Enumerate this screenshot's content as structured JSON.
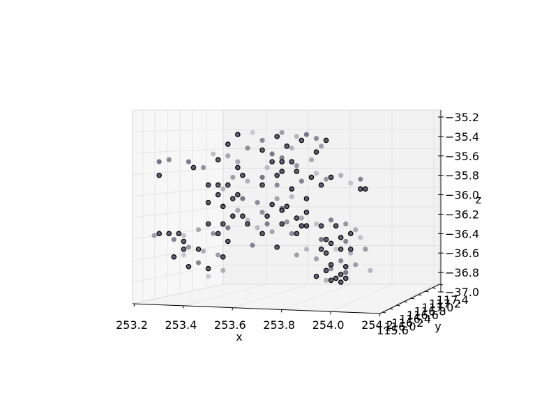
{
  "chart_data": {
    "type": "scatter",
    "projection": "3d",
    "title": "",
    "xlabel": "x",
    "ylabel": "y",
    "zlabel": "z",
    "xlim": [
      253.2,
      254.2
    ],
    "ylim": [
      115.6,
      117.4
    ],
    "zlim": [
      -37.0,
      -35.2
    ],
    "x_ticks": [
      "253.2",
      "253.4",
      "253.6",
      "253.8",
      "254.0",
      "254.2"
    ],
    "y_ticks": [
      "115.6",
      "116.0",
      "116.2",
      "116.4",
      "116.6",
      "116.8",
      "117.0",
      "117.2",
      "117.4"
    ],
    "z_ticks": [
      "-35.2",
      "-35.4",
      "-35.6",
      "-35.8",
      "-36.0",
      "-36.2",
      "-36.4",
      "-36.6",
      "-36.8",
      "-37.0"
    ],
    "grid": true,
    "marker_color": "#4a4660",
    "pane_color": "#f2f2f2",
    "series": [
      {
        "values": [
          {
            "x": 253.68,
            "z": -35.36
          },
          {
            "x": 253.72,
            "z": -35.44
          },
          {
            "x": 253.8,
            "z": -35.36
          },
          {
            "x": 253.86,
            "z": -35.4
          },
          {
            "x": 253.9,
            "z": -35.38
          },
          {
            "x": 253.94,
            "z": -35.42
          },
          {
            "x": 253.96,
            "z": -35.5
          },
          {
            "x": 253.84,
            "z": -35.52
          },
          {
            "x": 253.76,
            "z": -35.58
          },
          {
            "x": 253.66,
            "z": -35.52
          },
          {
            "x": 253.58,
            "z": -35.6
          },
          {
            "x": 253.52,
            "z": -35.58
          },
          {
            "x": 253.42,
            "z": -35.66
          },
          {
            "x": 253.48,
            "z": -35.72
          },
          {
            "x": 253.62,
            "z": -35.66
          },
          {
            "x": 253.74,
            "z": -35.72
          },
          {
            "x": 253.8,
            "z": -35.62
          },
          {
            "x": 253.86,
            "z": -35.7
          },
          {
            "x": 253.92,
            "z": -35.64
          },
          {
            "x": 253.94,
            "z": -35.78
          },
          {
            "x": 253.88,
            "z": -35.86
          },
          {
            "x": 253.98,
            "z": -35.84
          },
          {
            "x": 254.04,
            "z": -35.8
          },
          {
            "x": 254.08,
            "z": -35.88
          },
          {
            "x": 254.12,
            "z": -35.84
          },
          {
            "x": 253.6,
            "z": -35.82
          },
          {
            "x": 253.66,
            "z": -35.86
          },
          {
            "x": 253.72,
            "z": -35.82
          },
          {
            "x": 253.78,
            "z": -35.9
          },
          {
            "x": 253.84,
            "z": -35.94
          },
          {
            "x": 253.56,
            "z": -35.94
          },
          {
            "x": 253.64,
            "z": -36.04
          },
          {
            "x": 253.7,
            "z": -36.08
          },
          {
            "x": 253.78,
            "z": -36.04
          },
          {
            "x": 253.84,
            "z": -36.02
          },
          {
            "x": 253.8,
            "z": -36.14
          },
          {
            "x": 253.72,
            "z": -36.18
          },
          {
            "x": 253.62,
            "z": -36.16
          },
          {
            "x": 253.66,
            "z": -36.26
          },
          {
            "x": 253.74,
            "z": -36.3
          },
          {
            "x": 253.82,
            "z": -36.28
          },
          {
            "x": 253.88,
            "z": -36.24
          },
          {
            "x": 253.94,
            "z": -36.3
          },
          {
            "x": 254.0,
            "z": -36.26
          },
          {
            "x": 254.06,
            "z": -36.3
          },
          {
            "x": 254.1,
            "z": -36.36
          },
          {
            "x": 254.12,
            "z": -36.44
          },
          {
            "x": 254.06,
            "z": -36.48
          },
          {
            "x": 254.14,
            "z": -36.56
          },
          {
            "x": 254.08,
            "z": -36.6
          },
          {
            "x": 254.02,
            "z": -36.56
          },
          {
            "x": 254.04,
            "z": -36.68
          },
          {
            "x": 254.1,
            "z": -36.72
          },
          {
            "x": 254.16,
            "z": -36.78
          },
          {
            "x": 254.06,
            "z": -36.8
          },
          {
            "x": 254.0,
            "z": -36.76
          },
          {
            "x": 253.94,
            "z": -36.66
          },
          {
            "x": 253.9,
            "z": -36.56
          },
          {
            "x": 253.96,
            "z": -36.46
          },
          {
            "x": 253.84,
            "z": -36.4
          },
          {
            "x": 253.76,
            "z": -36.38
          },
          {
            "x": 253.7,
            "z": -36.34
          },
          {
            "x": 253.58,
            "z": -36.34
          },
          {
            "x": 253.52,
            "z": -36.4
          },
          {
            "x": 253.46,
            "z": -36.36
          },
          {
            "x": 253.4,
            "z": -36.42
          },
          {
            "x": 253.36,
            "z": -36.46
          },
          {
            "x": 253.42,
            "z": -36.54
          },
          {
            "x": 253.48,
            "z": -36.58
          },
          {
            "x": 253.4,
            "z": -36.62
          },
          {
            "x": 253.46,
            "z": -36.7
          },
          {
            "x": 253.54,
            "z": -36.62
          },
          {
            "x": 253.56,
            "z": -36.78
          },
          {
            "x": 253.5,
            "z": -36.84
          },
          {
            "x": 253.68,
            "z": -36.52
          },
          {
            "x": 253.86,
            "z": -36.62
          },
          {
            "x": 253.98,
            "z": -36.88
          },
          {
            "x": 253.3,
            "z": -35.66
          },
          {
            "x": 253.34,
            "z": -35.64
          },
          {
            "x": 253.28,
            "z": -36.42
          }
        ]
      },
      {
        "values": [
          {
            "x": 253.62,
            "z": -35.38
          },
          {
            "x": 253.78,
            "z": -35.4
          },
          {
            "x": 253.88,
            "z": -35.44
          },
          {
            "x": 253.98,
            "z": -35.44
          },
          {
            "x": 253.58,
            "z": -35.48
          },
          {
            "x": 253.82,
            "z": -35.5
          },
          {
            "x": 253.94,
            "z": -35.56
          },
          {
            "x": 253.72,
            "z": -35.54
          },
          {
            "x": 253.54,
            "z": -35.64
          },
          {
            "x": 253.76,
            "z": -35.66
          },
          {
            "x": 253.8,
            "z": -35.66
          },
          {
            "x": 253.84,
            "z": -35.66
          },
          {
            "x": 253.44,
            "z": -35.72
          },
          {
            "x": 253.62,
            "z": -35.72
          },
          {
            "x": 253.8,
            "z": -35.76
          },
          {
            "x": 253.86,
            "z": -35.76
          },
          {
            "x": 253.3,
            "z": -35.8
          },
          {
            "x": 253.64,
            "z": -35.8
          },
          {
            "x": 253.78,
            "z": -35.8
          },
          {
            "x": 253.92,
            "z": -35.82
          },
          {
            "x": 254.0,
            "z": -35.82
          },
          {
            "x": 253.5,
            "z": -35.9
          },
          {
            "x": 253.54,
            "z": -35.9
          },
          {
            "x": 253.58,
            "z": -35.9
          },
          {
            "x": 253.72,
            "z": -35.9
          },
          {
            "x": 253.96,
            "z": -35.9
          },
          {
            "x": 253.84,
            "z": -35.94
          },
          {
            "x": 254.12,
            "z": -35.94
          },
          {
            "x": 254.14,
            "z": -35.94
          },
          {
            "x": 253.54,
            "z": -36.0
          },
          {
            "x": 253.62,
            "z": -36.0
          },
          {
            "x": 253.9,
            "z": -36.04
          },
          {
            "x": 253.6,
            "z": -36.04
          },
          {
            "x": 253.5,
            "z": -36.08
          },
          {
            "x": 253.76,
            "z": -36.1
          },
          {
            "x": 253.82,
            "z": -36.12
          },
          {
            "x": 253.56,
            "z": -36.12
          },
          {
            "x": 253.8,
            "z": -36.16
          },
          {
            "x": 253.9,
            "z": -36.18
          },
          {
            "x": 253.6,
            "z": -36.22
          },
          {
            "x": 253.64,
            "z": -36.22
          },
          {
            "x": 253.74,
            "z": -36.22
          },
          {
            "x": 253.86,
            "z": -36.24
          },
          {
            "x": 253.5,
            "z": -36.3
          },
          {
            "x": 253.56,
            "z": -36.3
          },
          {
            "x": 253.66,
            "z": -36.3
          },
          {
            "x": 253.8,
            "z": -36.3
          },
          {
            "x": 253.9,
            "z": -36.32
          },
          {
            "x": 253.96,
            "z": -36.32
          },
          {
            "x": 254.02,
            "z": -36.32
          },
          {
            "x": 253.88,
            "z": -36.32
          },
          {
            "x": 253.3,
            "z": -36.4
          },
          {
            "x": 253.34,
            "z": -36.4
          },
          {
            "x": 253.38,
            "z": -36.4
          },
          {
            "x": 253.54,
            "z": -36.4
          },
          {
            "x": 253.72,
            "z": -36.4
          },
          {
            "x": 253.86,
            "z": -36.4
          },
          {
            "x": 254.08,
            "z": -36.4
          },
          {
            "x": 254.04,
            "z": -36.44
          },
          {
            "x": 253.98,
            "z": -36.46
          },
          {
            "x": 253.4,
            "z": -36.48
          },
          {
            "x": 253.58,
            "z": -36.48
          },
          {
            "x": 254.0,
            "z": -36.5
          },
          {
            "x": 253.4,
            "z": -36.56
          },
          {
            "x": 253.46,
            "z": -36.56
          },
          {
            "x": 253.78,
            "z": -36.54
          },
          {
            "x": 253.96,
            "z": -36.56
          },
          {
            "x": 254.04,
            "z": -36.56
          },
          {
            "x": 254.08,
            "z": -36.56
          },
          {
            "x": 253.98,
            "z": -36.6
          },
          {
            "x": 253.36,
            "z": -36.64
          },
          {
            "x": 253.56,
            "z": -36.64
          },
          {
            "x": 253.42,
            "z": -36.74
          },
          {
            "x": 253.5,
            "z": -36.76
          },
          {
            "x": 254.0,
            "z": -36.72
          },
          {
            "x": 254.06,
            "z": -36.74
          },
          {
            "x": 253.98,
            "z": -36.78
          },
          {
            "x": 254.04,
            "z": -36.82
          },
          {
            "x": 254.02,
            "z": -36.86
          },
          {
            "x": 254.06,
            "z": -36.86
          },
          {
            "x": 253.94,
            "z": -36.84
          },
          {
            "x": 254.0,
            "z": -36.88
          },
          {
            "x": 254.04,
            "z": -36.9
          }
        ]
      }
    ]
  }
}
